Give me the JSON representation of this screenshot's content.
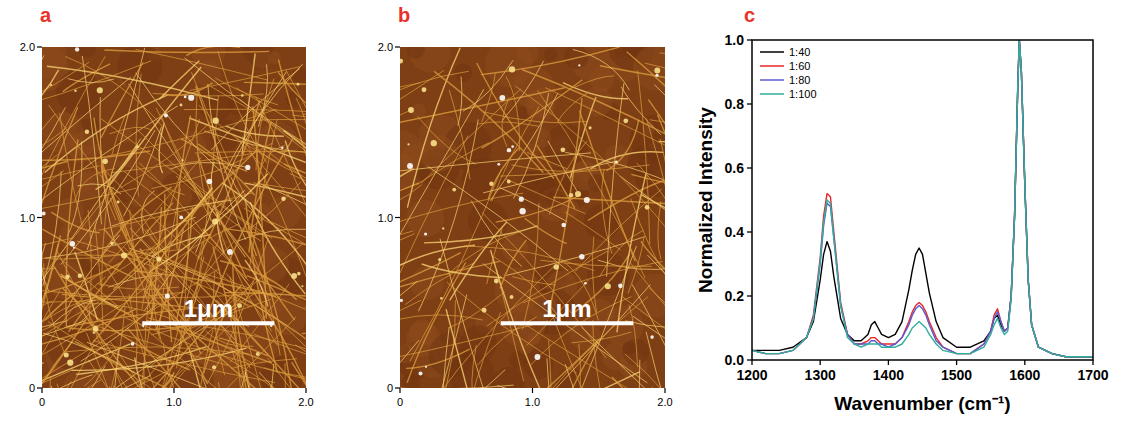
{
  "images": [
    {
      "letter": "a",
      "xlim": [
        0,
        2
      ],
      "ylim": [
        0,
        2
      ],
      "xticks": [
        0,
        {
          "value": 1,
          "label": "1.0"
        },
        {
          "value": 2,
          "label": "2.0"
        }
      ],
      "yticks": [
        0,
        {
          "value": 1,
          "label": "1.0"
        },
        {
          "value": 2,
          "label": "2.0"
        }
      ],
      "scale_bar": {
        "label": "1μm",
        "length": 1
      }
    },
    {
      "letter": "b",
      "xlim": [
        0,
        2
      ],
      "ylim": [
        0,
        2
      ],
      "xticks": [
        0,
        {
          "value": 1,
          "label": "1.0"
        },
        {
          "value": 2,
          "label": "2.0"
        }
      ],
      "yticks": [
        0,
        {
          "value": 1,
          "label": "1.0"
        },
        {
          "value": 2,
          "label": "2.0"
        }
      ],
      "scale_bar": {
        "label": "1μm",
        "length": 1
      }
    }
  ],
  "chart_data": {
    "type": "line",
    "letter": "c",
    "x_label": "Wavenumber (cm⁻¹)",
    "y_label": "Normalized Intensity",
    "xlim": [
      1200,
      1700
    ],
    "ylim": [
      0,
      1
    ],
    "xticks": [
      1200,
      1300,
      1400,
      1500,
      1600,
      1700
    ],
    "yticks": [
      {
        "value": 0,
        "label": "0.0"
      },
      {
        "value": 0.2,
        "label": "0.2"
      },
      {
        "value": 0.4,
        "label": "0.4"
      },
      {
        "value": 0.6,
        "label": "0.6"
      },
      {
        "value": 0.8,
        "label": "0.8"
      },
      {
        "value": 1,
        "label": "1.0"
      }
    ],
    "legend": "top-left",
    "x": [
      1200,
      1220,
      1240,
      1260,
      1280,
      1290,
      1300,
      1305,
      1310,
      1315,
      1320,
      1330,
      1340,
      1350,
      1360,
      1370,
      1375,
      1380,
      1385,
      1390,
      1400,
      1410,
      1420,
      1430,
      1435,
      1440,
      1445,
      1450,
      1455,
      1460,
      1470,
      1480,
      1500,
      1520,
      1540,
      1550,
      1555,
      1560,
      1565,
      1570,
      1575,
      1580,
      1585,
      1590,
      1592,
      1595,
      1600,
      1605,
      1610,
      1620,
      1640,
      1660,
      1680,
      1700
    ],
    "series": [
      {
        "name": "1:40",
        "color": "#000000",
        "values": [
          0.03,
          0.03,
          0.03,
          0.04,
          0.07,
          0.12,
          0.25,
          0.33,
          0.37,
          0.34,
          0.26,
          0.13,
          0.08,
          0.06,
          0.06,
          0.08,
          0.11,
          0.12,
          0.1,
          0.08,
          0.07,
          0.08,
          0.12,
          0.22,
          0.28,
          0.33,
          0.35,
          0.33,
          0.27,
          0.21,
          0.12,
          0.07,
          0.04,
          0.04,
          0.06,
          0.09,
          0.13,
          0.14,
          0.11,
          0.09,
          0.1,
          0.2,
          0.45,
          0.88,
          1.0,
          0.9,
          0.55,
          0.25,
          0.11,
          0.04,
          0.02,
          0.01,
          0.01,
          0.01
        ]
      },
      {
        "name": "1:60",
        "color": "#e8262a",
        "values": [
          0.03,
          0.02,
          0.02,
          0.03,
          0.07,
          0.14,
          0.32,
          0.45,
          0.52,
          0.51,
          0.4,
          0.18,
          0.08,
          0.05,
          0.05,
          0.06,
          0.07,
          0.07,
          0.06,
          0.05,
          0.05,
          0.05,
          0.07,
          0.12,
          0.15,
          0.17,
          0.18,
          0.17,
          0.15,
          0.12,
          0.07,
          0.04,
          0.02,
          0.02,
          0.05,
          0.09,
          0.14,
          0.16,
          0.12,
          0.09,
          0.1,
          0.2,
          0.45,
          0.88,
          1.0,
          0.9,
          0.55,
          0.25,
          0.11,
          0.04,
          0.02,
          0.01,
          0.01,
          0.01
        ]
      },
      {
        "name": "1:80",
        "color": "#5a5acf",
        "values": [
          0.03,
          0.02,
          0.02,
          0.03,
          0.07,
          0.13,
          0.3,
          0.42,
          0.49,
          0.48,
          0.38,
          0.17,
          0.08,
          0.05,
          0.05,
          0.05,
          0.06,
          0.06,
          0.05,
          0.05,
          0.04,
          0.05,
          0.07,
          0.11,
          0.14,
          0.16,
          0.17,
          0.16,
          0.14,
          0.11,
          0.06,
          0.04,
          0.02,
          0.02,
          0.05,
          0.09,
          0.13,
          0.15,
          0.12,
          0.09,
          0.1,
          0.2,
          0.45,
          0.88,
          1.0,
          0.9,
          0.55,
          0.25,
          0.11,
          0.04,
          0.02,
          0.01,
          0.01,
          0.01
        ]
      },
      {
        "name": "1:100",
        "color": "#2fae9c",
        "values": [
          0.03,
          0.02,
          0.02,
          0.03,
          0.07,
          0.13,
          0.31,
          0.43,
          0.5,
          0.49,
          0.38,
          0.17,
          0.07,
          0.05,
          0.04,
          0.05,
          0.05,
          0.05,
          0.05,
          0.04,
          0.04,
          0.04,
          0.05,
          0.08,
          0.1,
          0.11,
          0.12,
          0.11,
          0.1,
          0.08,
          0.05,
          0.03,
          0.02,
          0.02,
          0.04,
          0.08,
          0.11,
          0.13,
          0.1,
          0.08,
          0.09,
          0.19,
          0.45,
          0.88,
          1.0,
          0.9,
          0.55,
          0.25,
          0.11,
          0.04,
          0.02,
          0.01,
          0.01,
          0.01
        ]
      }
    ]
  }
}
